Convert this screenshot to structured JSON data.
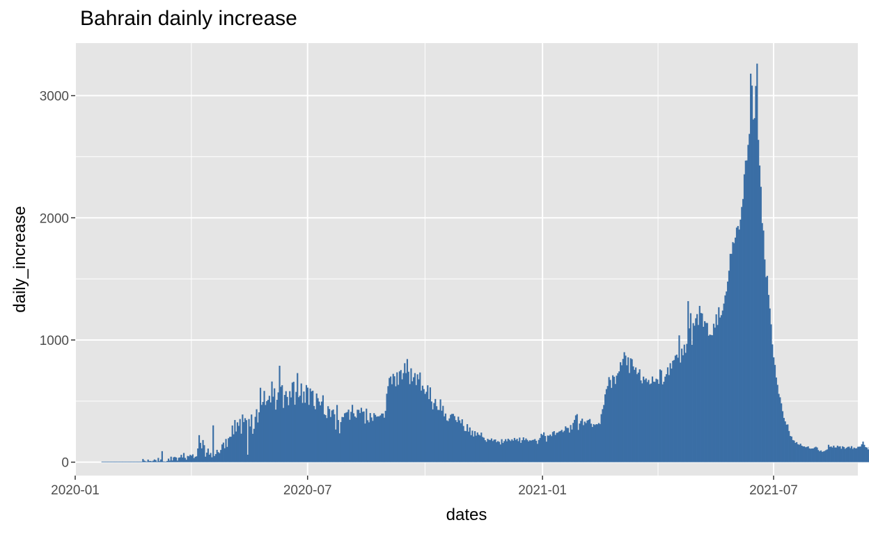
{
  "chart_data": {
    "type": "bar",
    "title": "Bahrain dainly increase",
    "xlabel": "dates",
    "ylabel": "daily_increase",
    "bar_color": "#3A6EA5",
    "panel_color": "#E5E5E5",
    "grid_color": "#FFFFFF",
    "grid": true,
    "legend": "none",
    "x_range": [
      "2020-01-01",
      "2021-09-05"
    ],
    "ylim": [
      -110,
      3430
    ],
    "x_ticks": [
      {
        "date": "2020-01-01",
        "label": "2020-01"
      },
      {
        "date": "2020-07-01",
        "label": "2020-07"
      },
      {
        "date": "2021-01-01",
        "label": "2021-01"
      },
      {
        "date": "2021-07-01",
        "label": "2021-07"
      }
    ],
    "y_ticks": [
      {
        "value": 0,
        "label": "0"
      },
      {
        "value": 1000,
        "label": "1000"
      },
      {
        "value": 2000,
        "label": "2000"
      },
      {
        "value": 3000,
        "label": "3000"
      }
    ],
    "first_date": "2020-01-22",
    "values": [
      0,
      0,
      0,
      0,
      0,
      0,
      0,
      0,
      0,
      0,
      0,
      0,
      0,
      0,
      0,
      0,
      0,
      0,
      0,
      0,
      0,
      0,
      0,
      0,
      0,
      0,
      0,
      0,
      0,
      0,
      0,
      0,
      26,
      13,
      7,
      3,
      21,
      9,
      10,
      6,
      12,
      22,
      17,
      4,
      35,
      8,
      22,
      90,
      6,
      5,
      1,
      10,
      29,
      13,
      45,
      14,
      40,
      43,
      38,
      13,
      36,
      39,
      60,
      38,
      75,
      35,
      20,
      51,
      48,
      60,
      53,
      64,
      33,
      44,
      48,
      112,
      221,
      158,
      113,
      181,
      139,
      45,
      78,
      111,
      61,
      75,
      40,
      301,
      50,
      66,
      101,
      82,
      74,
      100,
      145,
      160,
      114,
      190,
      125,
      196,
      207,
      208,
      300,
      228,
      345,
      251,
      326,
      297,
      353,
      233,
      390,
      328,
      360,
      344,
      61,
      353,
      292,
      390,
      232,
      273,
      371,
      433,
      325,
      408,
      609,
      469,
      493,
      583,
      468,
      500,
      510,
      543,
      489,
      660,
      536,
      604,
      430,
      510,
      571,
      789,
      617,
      630,
      444,
      550,
      581,
      534,
      466,
      581,
      530,
      651,
      658,
      470,
      575,
      729,
      532,
      544,
      644,
      485,
      578,
      486,
      631,
      610,
      469,
      603,
      579,
      585,
      460,
      433,
      562,
      524,
      496,
      465,
      496,
      547,
      392,
      385,
      361,
      458,
      435,
      370,
      423,
      431,
      392,
      267,
      468,
      345,
      236,
      328,
      370,
      368,
      400,
      405,
      410,
      430,
      347,
      412,
      469,
      400,
      374,
      364,
      429,
      428,
      402,
      445,
      412,
      415,
      316,
      438,
      343,
      326,
      402,
      366,
      338,
      401,
      387,
      372,
      375,
      375,
      383,
      398,
      398,
      364,
      420,
      560,
      622,
      689,
      701,
      638,
      723,
      703,
      621,
      735,
      633,
      743,
      754,
      678,
      729,
      810,
      729,
      844,
      740,
      639,
      768,
      662,
      695,
      729,
      631,
      719,
      678,
      734,
      586,
      626,
      598,
      559,
      576,
      629,
      516,
      612,
      497,
      432,
      484,
      517,
      458,
      428,
      427,
      514,
      421,
      461,
      375,
      398,
      342,
      336,
      358,
      388,
      395,
      395,
      377,
      344,
      328,
      372,
      342,
      319,
      351,
      296,
      256,
      254,
      311,
      250,
      284,
      221,
      258,
      210,
      254,
      217,
      243,
      225,
      218,
      242,
      206,
      200,
      180,
      167,
      191,
      183,
      181,
      194,
      173,
      184,
      186,
      164,
      172,
      166,
      145,
      188,
      157,
      172,
      188,
      171,
      192,
      183,
      173,
      187,
      176,
      198,
      182,
      191,
      172,
      201,
      158,
      180,
      203,
      180,
      194,
      182,
      170,
      179,
      176,
      181,
      183,
      189,
      175,
      150,
      182,
      198,
      232,
      222,
      244,
      214,
      168,
      218,
      216,
      226,
      213,
      247,
      254,
      223,
      240,
      242,
      251,
      255,
      264,
      246,
      257,
      293,
      281,
      280,
      242,
      304,
      267,
      321,
      346,
      383,
      393,
      264,
      316,
      338,
      356,
      303,
      332,
      320,
      341,
      346,
      353,
      315,
      288,
      311,
      304,
      311,
      310,
      320,
      312,
      393,
      434,
      468,
      555,
      598,
      623,
      696,
      673,
      608,
      711,
      699,
      640,
      708,
      728,
      743,
      818,
      793,
      845,
      900,
      872,
      793,
      858,
      730,
      850,
      843,
      784,
      756,
      775,
      720,
      733,
      760,
      669,
      645,
      700,
      674,
      685,
      656,
      673,
      638,
      644,
      701,
      659,
      657,
      683,
      677,
      641,
      759,
      751,
      637,
      658,
      700,
      720,
      776,
      713,
      810,
      766,
      830,
      836,
      872,
      880,
      855,
      1038,
      815,
      929,
      875,
      962,
      895,
      968,
      1318,
      1095,
      1219,
      960,
      1138,
      1117,
      1178,
      1212,
      1123,
      1279,
      1221,
      1217,
      1108,
      1154,
      1140,
      1139,
      1035,
      1044,
      1041,
      1039,
      1133,
      1101,
      1210,
      1123,
      1268,
      1184,
      1203,
      1241,
      1298,
      1365,
      1397,
      1478,
      1567,
      1705,
      1705,
      1801,
      1793,
      1838,
      1920,
      1933,
      1904,
      1985,
      2089,
      2154,
      2356,
      2468,
      2470,
      2597,
      2687,
      3180,
      3082,
      2805,
      2816,
      3079,
      3262,
      2638,
      2428,
      2254,
      1957,
      1896,
      1659,
      1515,
      1525,
      1369,
      1258,
      1128,
      964,
      858,
      796,
      693,
      633,
      559,
      531,
      481,
      417,
      362,
      334,
      307,
      309,
      255,
      214,
      210,
      181,
      177,
      158,
      164,
      147,
      142,
      151,
      135,
      129,
      129,
      122,
      125,
      129,
      113,
      110,
      112,
      112,
      120,
      126,
      120,
      99,
      89,
      96,
      84,
      88,
      92,
      99,
      104,
      142,
      125,
      128,
      120,
      135,
      120,
      120,
      135,
      127,
      130,
      110,
      130,
      124,
      109,
      117,
      125,
      127,
      115,
      131,
      109,
      119,
      113,
      114,
      126,
      127,
      128,
      146,
      168,
      142,
      123,
      120,
      104,
      124,
      134,
      122,
      105,
      124,
      138,
      113,
      114,
      120,
      142,
      109,
      118,
      108,
      117,
      122,
      131,
      125,
      112,
      90,
      126,
      104,
      103,
      120,
      116,
      113,
      115,
      118,
      123,
      116
    ]
  }
}
